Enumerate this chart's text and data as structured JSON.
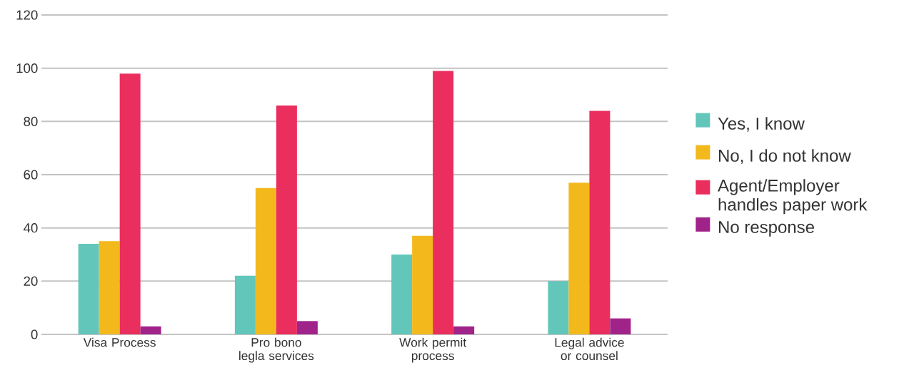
{
  "chart_data": {
    "type": "bar",
    "categories": [
      "Visa Process",
      "Pro bono legla services",
      "Work permit process",
      "Legal advice or counsel"
    ],
    "series": [
      {
        "name": "Yes, I know",
        "color": "#62c6bb",
        "values": [
          34,
          22,
          30,
          20
        ]
      },
      {
        "name": "No, I do not know",
        "color": "#f3b81c",
        "values": [
          35,
          55,
          37,
          57
        ]
      },
      {
        "name": "Agent/Employer handles paper work",
        "color": "#ea2e5d",
        "values": [
          98,
          86,
          99,
          84
        ]
      },
      {
        "name": "No response",
        "color": "#a0238a",
        "values": [
          3,
          5,
          3,
          6
        ]
      }
    ],
    "ylim": [
      0,
      120
    ],
    "yticks": [
      0,
      20,
      40,
      60,
      80,
      100,
      120
    ],
    "grid": "y",
    "legend": "right"
  }
}
